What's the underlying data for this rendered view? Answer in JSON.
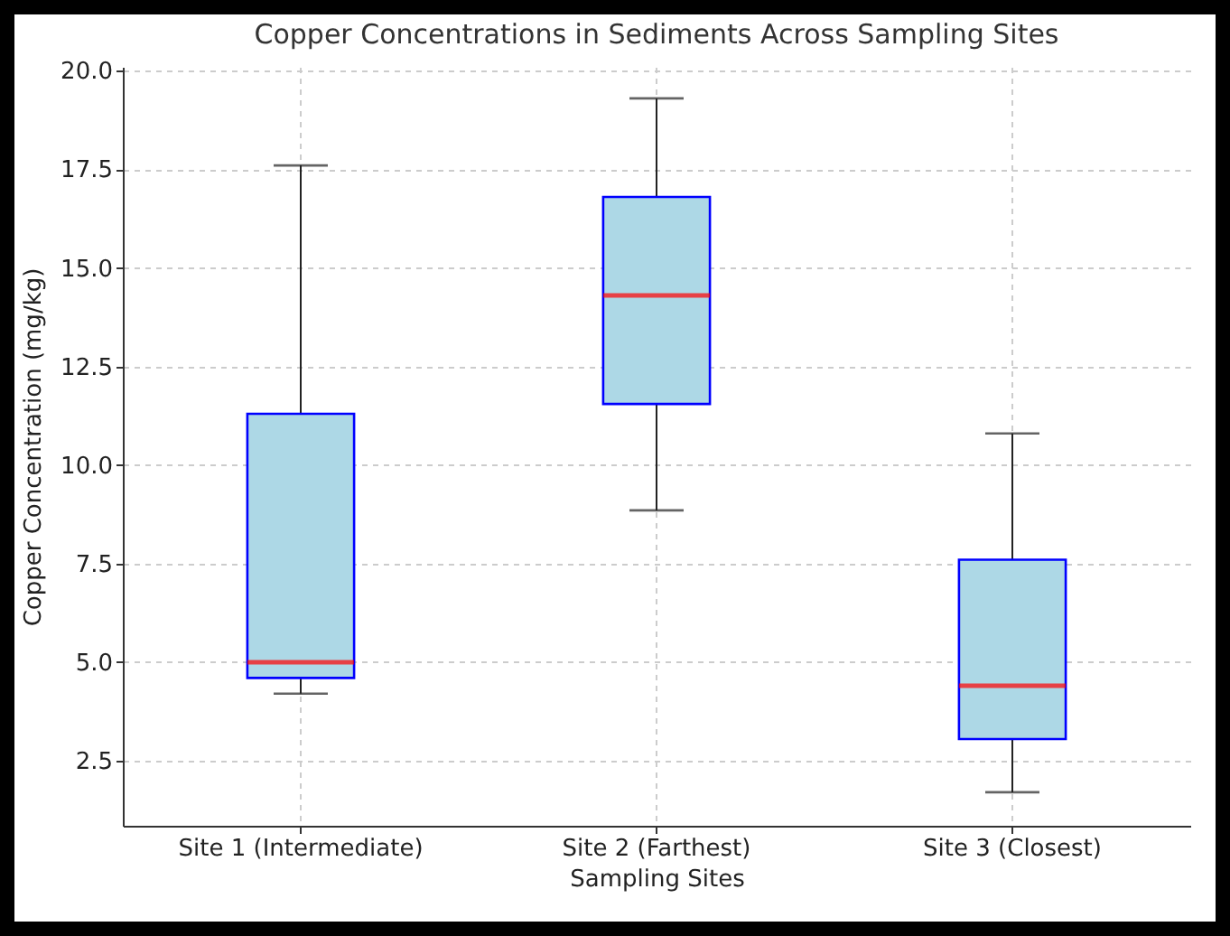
{
  "chart_data": {
    "type": "box",
    "title": "Copper Concentrations in Sediments Across Sampling Sites",
    "xlabel": "Sampling Sites",
    "ylabel": "Copper Concentration (mg/kg)",
    "categories": [
      "Site 1 (Intermediate)",
      "Site 2 (Farthest)",
      "Site 3 (Closest)"
    ],
    "series": [
      {
        "color": "#add8e6",
        "boxes": [
          {
            "low": 4.2,
            "q1": 4.6,
            "median": 5.0,
            "q3": 11.3,
            "high": 17.6
          },
          {
            "low": 8.85,
            "q1": 11.55,
            "median": 14.3,
            "q3": 16.8,
            "high": 19.3
          },
          {
            "low": 1.7,
            "q1": 3.05,
            "median": 4.4,
            "q3": 7.6,
            "high": 10.8
          }
        ]
      }
    ],
    "ylim": [
      0.85,
      20.1
    ],
    "yticks": [
      2.5,
      {
        "value": 5,
        "label": "5.0"
      },
      7.5,
      {
        "value": 10,
        "label": "10.0"
      },
      12.5,
      {
        "value": 15,
        "label": "15.0"
      },
      17.5,
      {
        "value": 20,
        "label": "20.0"
      }
    ],
    "grid": true
  }
}
